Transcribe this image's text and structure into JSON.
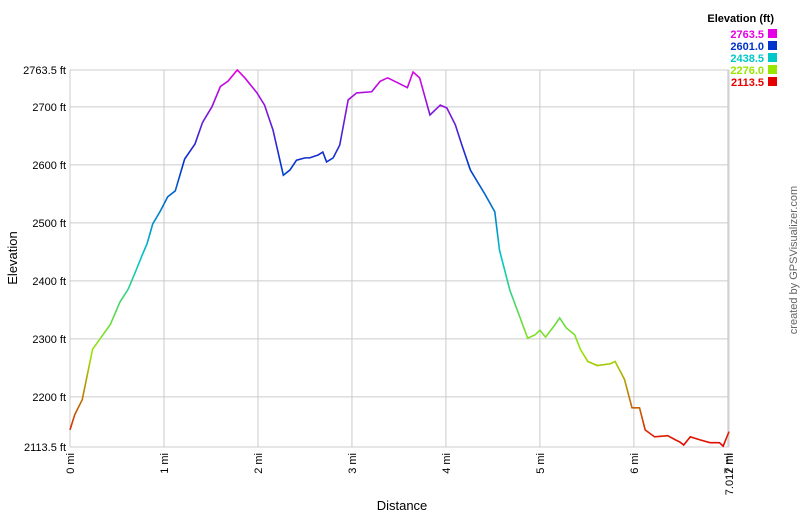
{
  "chart_data": {
    "type": "line",
    "xlabel": "Distance",
    "ylabel": "Elevation",
    "credit": "created by GPSVisualizer.com",
    "x": [
      0,
      0.05,
      0.13,
      0.24,
      0.32,
      0.43,
      0.53,
      0.62,
      0.69,
      0.77,
      0.82,
      0.88,
      0.96,
      1.04,
      1.12,
      1.22,
      1.33,
      1.41,
      1.51,
      1.6,
      1.68,
      1.78,
      1.86,
      1.99,
      2.07,
      2.16,
      2.27,
      2.34,
      2.41,
      2.5,
      2.55,
      2.64,
      2.69,
      2.73,
      2.8,
      2.87,
      2.96,
      3.05,
      3.21,
      3.3,
      3.38,
      3.48,
      3.59,
      3.65,
      3.72,
      3.83,
      3.94,
      4.01,
      4.1,
      4.17,
      4.26,
      4.42,
      4.52,
      4.57,
      4.68,
      4.79,
      4.87,
      4.95,
      5.0,
      5.06,
      5.16,
      5.21,
      5.28,
      5.37,
      5.43,
      5.51,
      5.61,
      5.75,
      5.8,
      5.9,
      5.98,
      6.06,
      6.12,
      6.22,
      6.36,
      6.44,
      6.49,
      6.53,
      6.6,
      6.7,
      6.81,
      6.91,
      6.95,
      7.012
    ],
    "series": [
      {
        "values": [
          2143,
          2169,
          2195,
          2282,
          2300,
          2325,
          2363,
          2386,
          2413,
          2445,
          2464,
          2498,
          2520,
          2545,
          2555,
          2610,
          2636,
          2673,
          2700,
          2735,
          2744,
          2763.5,
          2750,
          2724,
          2703,
          2660,
          2582,
          2591,
          2608,
          2612,
          2612,
          2617,
          2622,
          2605,
          2612,
          2634,
          2712,
          2724,
          2726,
          2744,
          2750,
          2742,
          2733,
          2760,
          2750,
          2686,
          2703,
          2698,
          2669,
          2634,
          2591,
          2548,
          2519,
          2453,
          2384,
          2336,
          2301,
          2307,
          2315,
          2303,
          2324,
          2336,
          2319,
          2307,
          2282,
          2261,
          2254,
          2257,
          2261,
          2230,
          2181,
          2181,
          2143,
          2131,
          2133,
          2126,
          2122,
          2117,
          2131,
          2126,
          2121,
          2121,
          2115,
          2140
        ]
      }
    ],
    "xlim": [
      0,
      7.012
    ],
    "xticks": [
      {
        "value": 0,
        "label": "0 mi"
      },
      {
        "value": 1,
        "label": "1 mi"
      },
      {
        "value": 2,
        "label": "2 mi"
      },
      {
        "value": 3,
        "label": "3 mi"
      },
      {
        "value": 4,
        "label": "4 mi"
      },
      {
        "value": 5,
        "label": "5 mi"
      },
      {
        "value": 6,
        "label": "6 mi"
      },
      {
        "value": 7,
        "label": "7 mi"
      },
      {
        "value": 7.012,
        "label": "7.012 mi"
      }
    ],
    "ylim": [
      2113.5,
      2763.5
    ],
    "yticks": [
      {
        "value": 2113.5,
        "label": "2113.5 ft"
      },
      {
        "value": 2200,
        "label": "2200 ft"
      },
      {
        "value": 2300,
        "label": "2300 ft"
      },
      {
        "value": 2400,
        "label": "2400 ft"
      },
      {
        "value": 2500,
        "label": "2500 ft"
      },
      {
        "value": 2600,
        "label": "2600 ft"
      },
      {
        "value": 2700,
        "label": "2700 ft"
      },
      {
        "value": 2763.5,
        "label": "2763.5 ft"
      }
    ],
    "grid": true,
    "legend": {
      "title": "Elevation (ft)",
      "position": "upper right",
      "values": [
        2763.5,
        2601,
        2438.5,
        2276,
        2113.5
      ],
      "value_labels": [
        "2763.5",
        "2601.0",
        "2438.5",
        "2276.0",
        "2113.5"
      ],
      "colors": [
        "#e600e6",
        "#0033cc",
        "#00c8c8",
        "#99e600",
        "#e60000"
      ]
    }
  }
}
